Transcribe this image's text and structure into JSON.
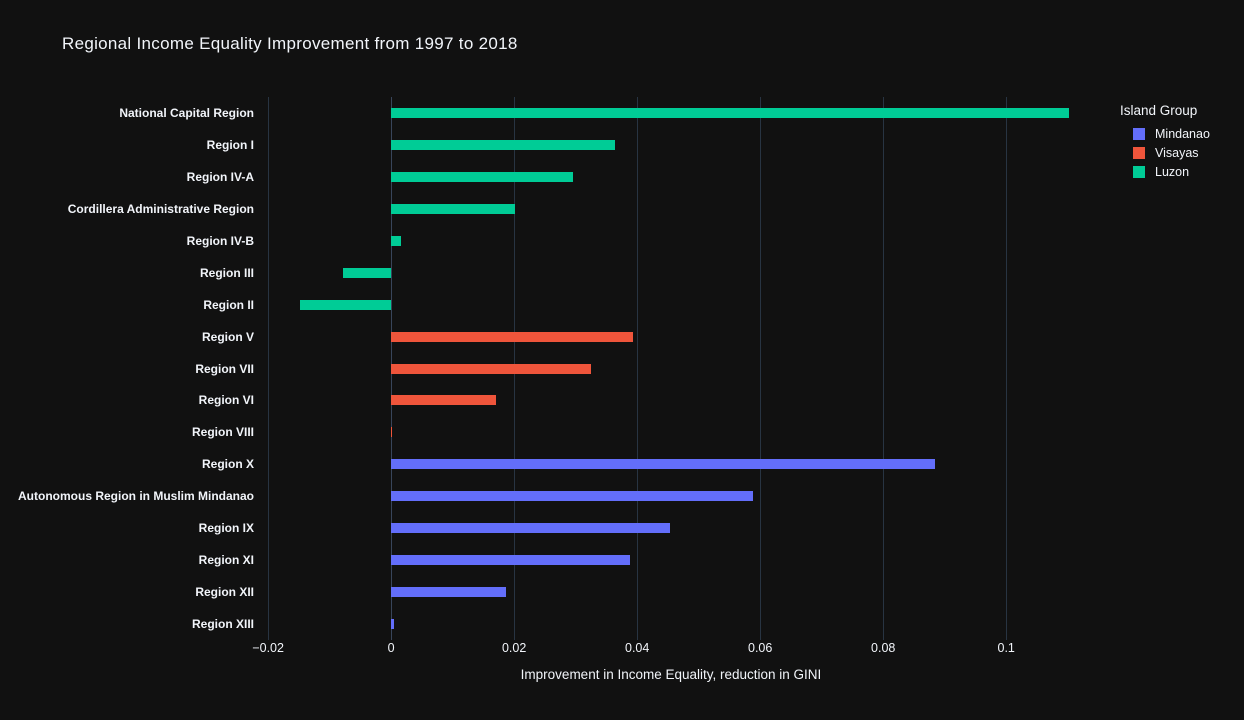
{
  "chart_data": {
    "type": "bar",
    "orientation": "horizontal",
    "title": "Regional Income Equality Improvement from 1997 to 2018",
    "xlabel": "Improvement in Income Equality, reduction in GINI",
    "ylabel": "",
    "legend_title": "Island Group",
    "legend_position": "top-right",
    "grid": true,
    "xlim": [
      -0.021,
      0.112
    ],
    "x_tick_values": [
      -0.02,
      0,
      0.02,
      0.04,
      0.06,
      0.08,
      0.1
    ],
    "x_tick_labels": [
      "−0.02",
      "0",
      "0.02",
      "0.04",
      "0.06",
      "0.08",
      "0.1"
    ],
    "groups": [
      {
        "name": "Mindanao",
        "color": "#636efa"
      },
      {
        "name": "Visayas",
        "color": "#ef553b"
      },
      {
        "name": "Luzon",
        "color": "#00cc96"
      }
    ],
    "bars": [
      {
        "category": "National Capital Region",
        "group": "Luzon",
        "value": 0.1102
      },
      {
        "category": "Region I",
        "group": "Luzon",
        "value": 0.0364
      },
      {
        "category": "Region IV-A",
        "group": "Luzon",
        "value": 0.0295
      },
      {
        "category": "Cordillera Administrative Region",
        "group": "Luzon",
        "value": 0.0202
      },
      {
        "category": "Region IV-B",
        "group": "Luzon",
        "value": 0.0016
      },
      {
        "category": "Region III",
        "group": "Luzon",
        "value": -0.0079
      },
      {
        "category": "Region II",
        "group": "Luzon",
        "value": -0.0148
      },
      {
        "category": "Region V",
        "group": "Visayas",
        "value": 0.0394
      },
      {
        "category": "Region VII",
        "group": "Visayas",
        "value": 0.0325
      },
      {
        "category": "Region VI",
        "group": "Visayas",
        "value": 0.0171
      },
      {
        "category": "Region VIII",
        "group": "Visayas",
        "value": 0.0002
      },
      {
        "category": "Region X",
        "group": "Mindanao",
        "value": 0.0885
      },
      {
        "category": "Autonomous Region in Muslim Mindanao",
        "group": "Mindanao",
        "value": 0.0588
      },
      {
        "category": "Region IX",
        "group": "Mindanao",
        "value": 0.0454
      },
      {
        "category": "Region XI",
        "group": "Mindanao",
        "value": 0.0388
      },
      {
        "category": "Region XII",
        "group": "Mindanao",
        "value": 0.0187
      },
      {
        "category": "Region XIII",
        "group": "Mindanao",
        "value": 0.0005
      }
    ],
    "colors": {
      "background": "#111111",
      "text": "#f2f5fa",
      "gridline": "#283442",
      "zeroline": "#38455a"
    }
  }
}
